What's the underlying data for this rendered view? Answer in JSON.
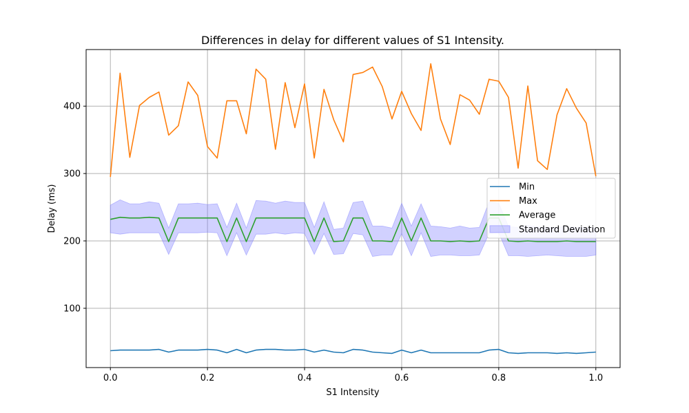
{
  "chart_data": {
    "type": "line",
    "title": "Differences in delay for different values of S1 Intensity.",
    "xlabel": "S1 Intensity",
    "ylabel": "Delay (ms)",
    "xlim": [
      -0.05,
      1.05
    ],
    "ylim": [
      12,
      484
    ],
    "xticks": [
      0.0,
      0.2,
      0.4,
      0.6,
      0.8,
      1.0
    ],
    "xtick_labels": [
      "0.0",
      "0.2",
      "0.4",
      "0.6",
      "0.8",
      "1.0"
    ],
    "yticks": [
      100,
      200,
      300,
      400
    ],
    "ytick_labels": [
      "100",
      "200",
      "300",
      "400"
    ],
    "grid": true,
    "legend_position": "center-right",
    "x": [
      0.0,
      0.02,
      0.04,
      0.06,
      0.08,
      0.1,
      0.12,
      0.14,
      0.16,
      0.18,
      0.2,
      0.22,
      0.24,
      0.26,
      0.28,
      0.3,
      0.32,
      0.34,
      0.36,
      0.38,
      0.4,
      0.42,
      0.44,
      0.46,
      0.48,
      0.5,
      0.52,
      0.54,
      0.56,
      0.58,
      0.6,
      0.62,
      0.64,
      0.66,
      0.68,
      0.7,
      0.72,
      0.74,
      0.76,
      0.78,
      0.8,
      0.82,
      0.84,
      0.86,
      0.88,
      0.9,
      0.92,
      0.94,
      0.96,
      0.98,
      1.0
    ],
    "series": [
      {
        "name": "Min",
        "kind": "line",
        "color": "#1f77b4",
        "values": [
          37,
          38,
          38,
          38,
          38,
          39,
          35,
          38,
          38,
          38,
          39,
          38,
          34,
          39,
          34,
          38,
          39,
          39,
          38,
          38,
          39,
          35,
          38,
          35,
          34,
          39,
          38,
          35,
          34,
          33,
          38,
          34,
          38,
          34,
          34,
          34,
          34,
          34,
          34,
          38,
          39,
          34,
          33,
          34,
          34,
          34,
          33,
          34,
          33,
          34,
          35
        ]
      },
      {
        "name": "Max",
        "kind": "line",
        "color": "#ff7f0e",
        "values": [
          295,
          449,
          324,
          401,
          413,
          421,
          357,
          371,
          436,
          416,
          340,
          323,
          408,
          408,
          359,
          455,
          440,
          336,
          435,
          368,
          433,
          323,
          425,
          380,
          347,
          447,
          450,
          458,
          429,
          381,
          422,
          389,
          364,
          463,
          381,
          343,
          417,
          409,
          388,
          440,
          437,
          413,
          308,
          430,
          319,
          306,
          387,
          426,
          397,
          375,
          296
        ]
      },
      {
        "name": "Average",
        "kind": "line",
        "color": "#2ca02c",
        "values": [
          232,
          235,
          234,
          234,
          235,
          234,
          199,
          234,
          234,
          234,
          234,
          234,
          199,
          234,
          199,
          234,
          234,
          234,
          234,
          234,
          234,
          199,
          234,
          199,
          200,
          234,
          234,
          200,
          200,
          199,
          234,
          200,
          234,
          200,
          200,
          199,
          200,
          199,
          200,
          234,
          234,
          200,
          199,
          200,
          199,
          199,
          199,
          200,
          199,
          199,
          199
        ]
      },
      {
        "name": "Standard Deviation",
        "kind": "band",
        "color": "#7b7bff",
        "upper": [
          253,
          261,
          255,
          255,
          258,
          256,
          219,
          255,
          255,
          256,
          254,
          255,
          220,
          256,
          219,
          260,
          259,
          256,
          259,
          257,
          257,
          220,
          258,
          217,
          219,
          257,
          259,
          222,
          222,
          219,
          256,
          222,
          255,
          222,
          221,
          219,
          222,
          219,
          220,
          258,
          256,
          221,
          220,
          223,
          221,
          220,
          220,
          222,
          220,
          220,
          219
        ],
        "lower": [
          212,
          210,
          212,
          212,
          212,
          212,
          180,
          212,
          212,
          212,
          213,
          212,
          178,
          212,
          179,
          210,
          210,
          212,
          210,
          212,
          211,
          180,
          211,
          180,
          181,
          211,
          209,
          177,
          179,
          179,
          211,
          178,
          212,
          177,
          179,
          179,
          178,
          178,
          179,
          211,
          212,
          178,
          178,
          177,
          178,
          179,
          178,
          177,
          177,
          177,
          179
        ]
      }
    ],
    "legend": [
      "Min",
      "Max",
      "Average",
      "Standard Deviation"
    ]
  }
}
